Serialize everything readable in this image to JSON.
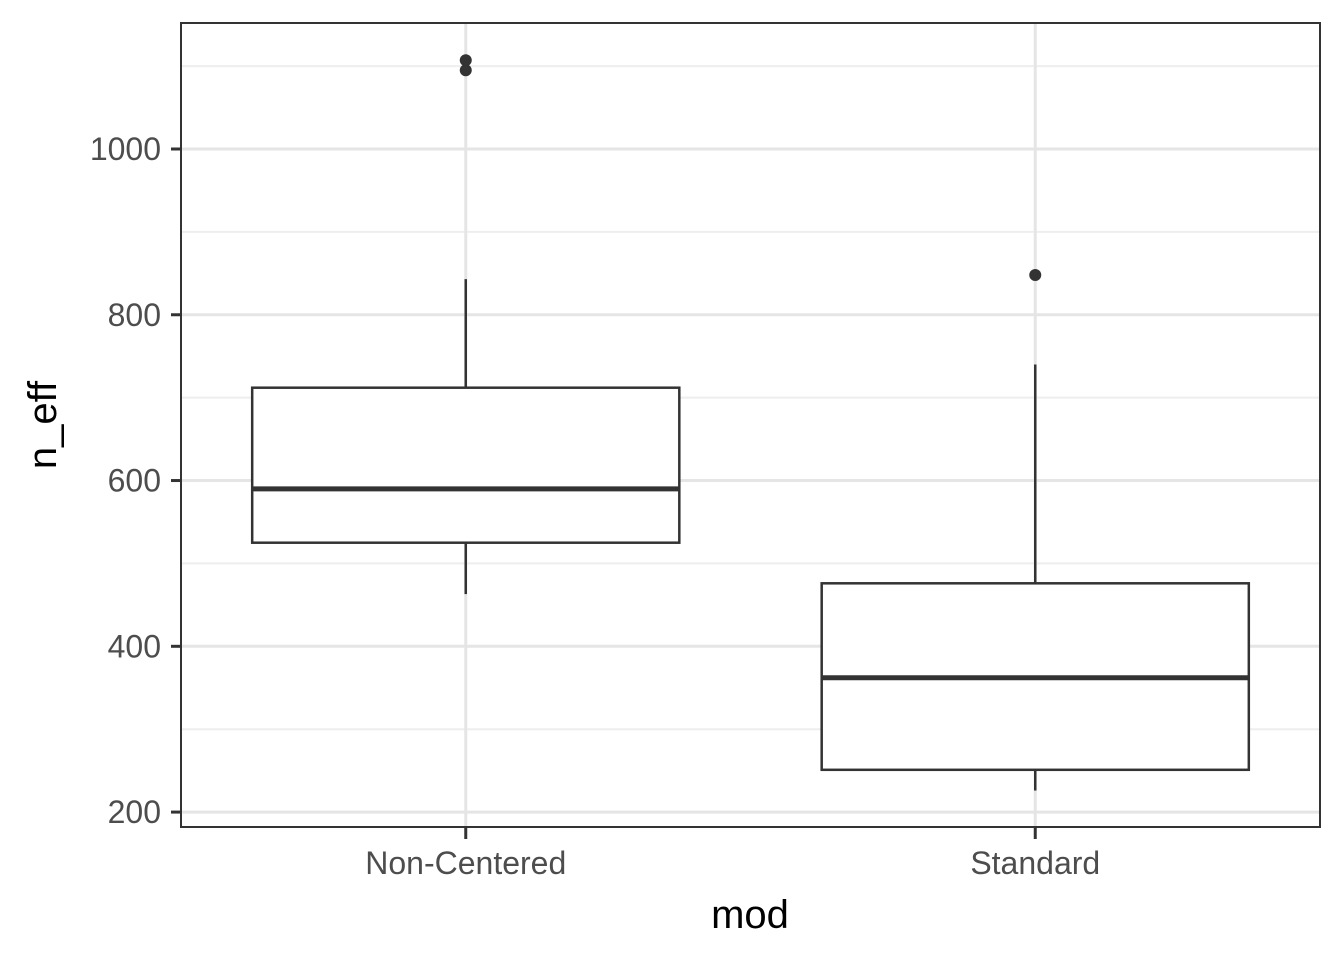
{
  "chart_data": {
    "type": "box",
    "xlabel": "mod",
    "ylabel": "n_eff",
    "categories": [
      "Non-Centered",
      "Standard"
    ],
    "ylim": [
      182,
      1152
    ],
    "y_ticks": [
      200,
      400,
      600,
      800,
      1000
    ],
    "y_tick_labels": [
      "200",
      "400",
      "600",
      "800",
      "1000"
    ],
    "grid": true,
    "legend": "none",
    "boxes": [
      {
        "category": "Non-Centered",
        "whisker_low": 463,
        "q1": 525,
        "median": 590,
        "q3": 712,
        "whisker_high": 843,
        "outliers": [
          1095,
          1107
        ]
      },
      {
        "category": "Standard",
        "whisker_low": 226,
        "q1": 251,
        "median": 362,
        "q3": 476,
        "whisker_high": 740,
        "outliers": [
          848
        ]
      }
    ],
    "colors": {
      "box_stroke": "#333333",
      "box_fill": "#ffffff",
      "outlier": "#333333",
      "grid_major": "#e5e5e5",
      "grid_minor": "#eeeeee",
      "panel_border": "#333333"
    }
  }
}
